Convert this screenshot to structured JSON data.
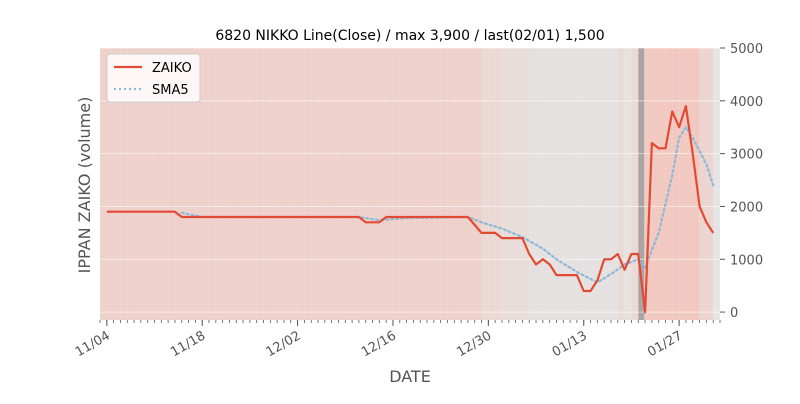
{
  "chart_data": {
    "type": "line",
    "title": "6820 NIKKO Line(Close) / max 3,900 / last(02/01) 1,500",
    "xlabel": "DATE",
    "ylabel": "IPPAN ZAIKO (volume)",
    "ylim": [
      -150,
      5000
    ],
    "yticks": [
      0,
      1000,
      2000,
      3000,
      4000,
      5000
    ],
    "x_ticks": [
      {
        "date": "2018-11-04",
        "label": "11/04"
      },
      {
        "date": "2018-11-18",
        "label": "11/18"
      },
      {
        "date": "2018-12-02",
        "label": "12/02"
      },
      {
        "date": "2018-12-16",
        "label": "12/16"
      },
      {
        "date": "2018-12-30",
        "label": "12/30"
      },
      {
        "date": "2019-01-13",
        "label": "01/13"
      },
      {
        "date": "2019-01-27",
        "label": "01/27"
      }
    ],
    "xlim": [
      "2018-11-03",
      "2019-02-02"
    ],
    "legend": {
      "position": "top-left"
    },
    "grid": true,
    "colors": {
      "zaiko": "#e24a33",
      "sma5": "#8eb8d8",
      "plot_bg": "#e5e5e5",
      "band": "#f2c9c1"
    },
    "series": [
      {
        "name": "ZAIKO",
        "style": "solid",
        "points": [
          [
            "2018-11-04",
            1900
          ],
          [
            "2018-11-14",
            1900
          ],
          [
            "2018-11-15",
            1800
          ],
          [
            "2018-12-11",
            1800
          ],
          [
            "2018-12-12",
            1700
          ],
          [
            "2018-12-14",
            1700
          ],
          [
            "2018-12-15",
            1800
          ],
          [
            "2018-12-27",
            1800
          ],
          [
            "2018-12-28",
            1650
          ],
          [
            "2018-12-29",
            1500
          ],
          [
            "2018-12-31",
            1500
          ],
          [
            "2019-01-01",
            1400
          ],
          [
            "2019-01-04",
            1400
          ],
          [
            "2019-01-05",
            1100
          ],
          [
            "2019-01-06",
            900
          ],
          [
            "2019-01-07",
            1000
          ],
          [
            "2019-01-08",
            900
          ],
          [
            "2019-01-09",
            700
          ],
          [
            "2019-01-12",
            700
          ],
          [
            "2019-01-13",
            400
          ],
          [
            "2019-01-14",
            400
          ],
          [
            "2019-01-15",
            600
          ],
          [
            "2019-01-16",
            1000
          ],
          [
            "2019-01-17",
            1000
          ],
          [
            "2019-01-18",
            1100
          ],
          [
            "2019-01-19",
            800
          ],
          [
            "2019-01-20",
            1100
          ],
          [
            "2019-01-21",
            1100
          ],
          [
            "2019-01-22",
            0
          ],
          [
            "2019-01-23",
            3200
          ],
          [
            "2019-01-24",
            3100
          ],
          [
            "2019-01-25",
            3100
          ],
          [
            "2019-01-26",
            3800
          ],
          [
            "2019-01-27",
            3500
          ],
          [
            "2019-01-28",
            3900
          ],
          [
            "2019-01-29",
            3000
          ],
          [
            "2019-01-30",
            2000
          ],
          [
            "2019-01-31",
            1700
          ],
          [
            "2019-02-01",
            1500
          ]
        ]
      },
      {
        "name": "SMA5",
        "style": "dotted",
        "points": [
          [
            "2018-11-15",
            1880
          ],
          [
            "2018-11-18",
            1800
          ],
          [
            "2018-12-11",
            1800
          ],
          [
            "2018-12-14",
            1740
          ],
          [
            "2018-12-18",
            1780
          ],
          [
            "2018-12-27",
            1800
          ],
          [
            "2018-12-29",
            1700
          ],
          [
            "2019-01-01",
            1580
          ],
          [
            "2019-01-04",
            1420
          ],
          [
            "2019-01-07",
            1200
          ],
          [
            "2019-01-09",
            1000
          ],
          [
            "2019-01-12",
            760
          ],
          [
            "2019-01-15",
            560
          ],
          [
            "2019-01-17",
            720
          ],
          [
            "2019-01-19",
            900
          ],
          [
            "2019-01-21",
            1000
          ],
          [
            "2019-01-22",
            850
          ],
          [
            "2019-01-24",
            1500
          ],
          [
            "2019-01-26",
            2600
          ],
          [
            "2019-01-27",
            3300
          ],
          [
            "2019-01-28",
            3500
          ],
          [
            "2019-01-29",
            3300
          ],
          [
            "2019-01-31",
            2800
          ],
          [
            "2019-02-01",
            2400
          ]
        ]
      }
    ],
    "bands": [
      {
        "from": "2018-11-03",
        "to": "2018-12-29",
        "opacity": 0.75
      },
      {
        "from": "2018-12-29",
        "to": "2019-01-01",
        "opacity": 0.45
      },
      {
        "from": "2019-01-01",
        "to": "2019-01-05",
        "opacity": 0.3
      },
      {
        "from": "2019-01-05",
        "to": "2019-01-18",
        "opacity": 0.1
      },
      {
        "from": "2019-01-18",
        "to": "2019-01-19",
        "opacity": 0.35
      },
      {
        "from": "2019-01-19",
        "to": "2019-01-20",
        "opacity": 0.15
      },
      {
        "from": "2019-01-20",
        "to": "2019-01-21",
        "opacity": 0.45
      },
      {
        "from": "2019-01-21",
        "to": "2019-01-22",
        "opacity": 0.8
      },
      {
        "from": "2019-01-22",
        "to": "2019-01-30",
        "opacity": 1.0
      },
      {
        "from": "2019-01-30",
        "to": "2019-02-01",
        "opacity": 0.55
      }
    ],
    "markers": [
      {
        "date": "2019-01-21",
        "color": "#a0a0a0"
      }
    ]
  }
}
